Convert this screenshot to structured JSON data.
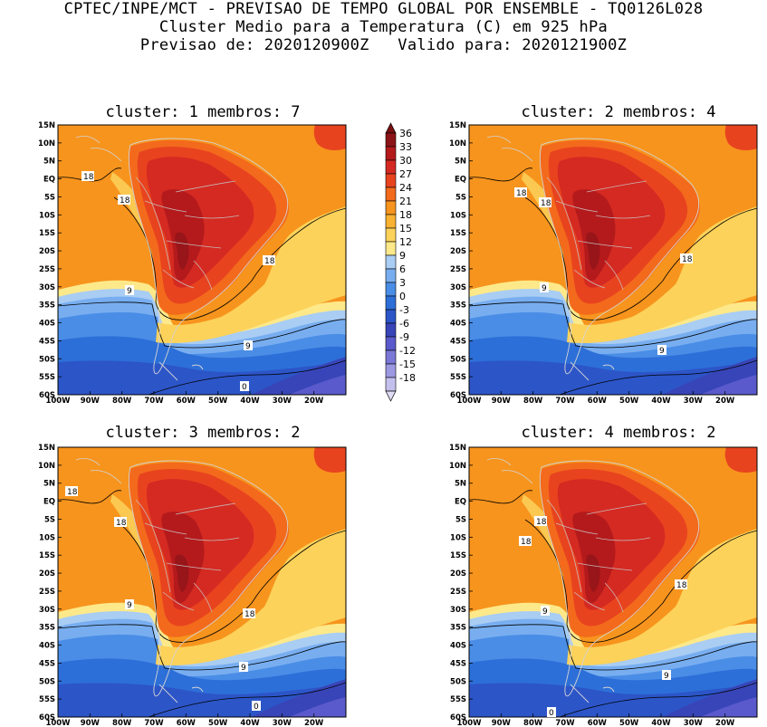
{
  "header": {
    "line1": "CPTEC/INPE/MCT - PREVISAO DE TEMPO GLOBAL POR ENSEMBLE - TQ0126L028",
    "line2": "Cluster Medio para a Temperatura (C) em 925 hPa",
    "line3": "Previsao de: 2020120900Z   Valido para: 2020121900Z"
  },
  "axes": {
    "lat_labels": [
      "15N",
      "10N",
      "5N",
      "EQ",
      "5S",
      "10S",
      "15S",
      "20S",
      "25S",
      "30S",
      "35S",
      "40S",
      "45S",
      "50S",
      "55S",
      "60S"
    ],
    "lon_labels": [
      "100W",
      "90W",
      "80W",
      "70W",
      "60W",
      "50W",
      "40W",
      "30W",
      "20W"
    ]
  },
  "panels": [
    {
      "title": "cluster: 1   membros: 7",
      "contour_labels": [
        "18",
        "18",
        "18",
        "9",
        "9",
        "0"
      ]
    },
    {
      "title": "cluster: 2   membros: 4",
      "contour_labels": [
        "18",
        "18",
        "18",
        "9",
        "9"
      ]
    },
    {
      "title": "cluster: 3   membros: 2",
      "contour_labels": [
        "18",
        "18",
        "18",
        "9",
        "9",
        "0"
      ]
    },
    {
      "title": "cluster: 4   membros: 2",
      "contour_labels": [
        "18",
        "18",
        "18",
        "9",
        "9",
        "0"
      ]
    }
  ],
  "legend": {
    "levels": [
      "36",
      "33",
      "30",
      "27",
      "24",
      "21",
      "18",
      "15",
      "12",
      "9",
      "6",
      "3",
      "0",
      "-3",
      "-6",
      "-9",
      "-12",
      "-15",
      "-18"
    ],
    "colors": [
      "#8c1418",
      "#b41a1c",
      "#d42a22",
      "#e8431f",
      "#f36a1c",
      "#f7941d",
      "#fab232",
      "#fcd25a",
      "#fde98a",
      "#a9cdf3",
      "#78aef0",
      "#4a8de6",
      "#2d6fd8",
      "#2c55c8",
      "#3845b8",
      "#5a5acc",
      "#7c78d8",
      "#9c98e2",
      "#c4c0ee"
    ],
    "arrow_top_color": "#7a0f12",
    "arrow_bottom_color": "#e0dcf5"
  },
  "chart_data": {
    "type": "heatmap",
    "variable": "Temperatura (C) em 925 hPa",
    "lon_range": [
      "100W",
      "10W"
    ],
    "lat_range": [
      "60S",
      "15N"
    ],
    "contour_levels": [
      0,
      9,
      18
    ],
    "panels": [
      "cluster: 1   membros: 7",
      "cluster: 2   membros: 4",
      "cluster: 3   membros: 2",
      "cluster: 4   membros: 2"
    ]
  }
}
